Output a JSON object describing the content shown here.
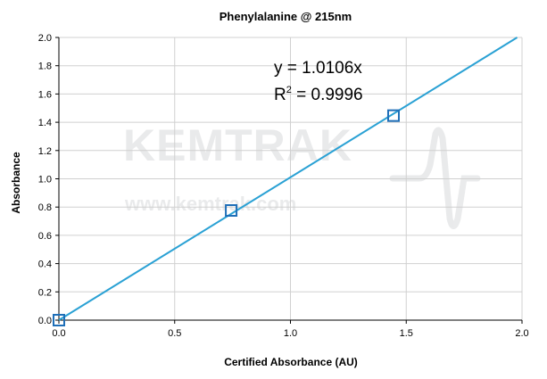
{
  "chart_data": {
    "type": "scatter",
    "title": "Phenylalanine @ 215nm",
    "xlabel": "Certified Absorbance (AU)",
    "ylabel": "Absorbance",
    "xlim": [
      0,
      2.0
    ],
    "ylim": [
      0,
      2.0
    ],
    "x_ticks": [
      "0.0",
      "0.5",
      "1.0",
      "1.5",
      "2.0"
    ],
    "y_ticks": [
      "0.0",
      "0.2",
      "0.4",
      "0.6",
      "0.8",
      "1.0",
      "1.2",
      "1.4",
      "1.6",
      "1.8",
      "2.0"
    ],
    "grid": true,
    "legend": "none",
    "series": [
      {
        "x": [
          0.0,
          0.744,
          1.445
        ],
        "y": [
          0.0,
          0.776,
          1.447
        ],
        "marker": "hollow-square",
        "color": "#1f6fb8"
      }
    ],
    "trendline": {
      "slope": 1.0106,
      "intercept": 0,
      "color": "#2aa1d4",
      "equation": "y = 1.0106x",
      "r2_label": "R",
      "r2_exponent": "2",
      "r2_value": " = 0.9996"
    },
    "watermark": {
      "logo_text": "KEMTRAK",
      "url": "www.kemtrak.com"
    }
  }
}
